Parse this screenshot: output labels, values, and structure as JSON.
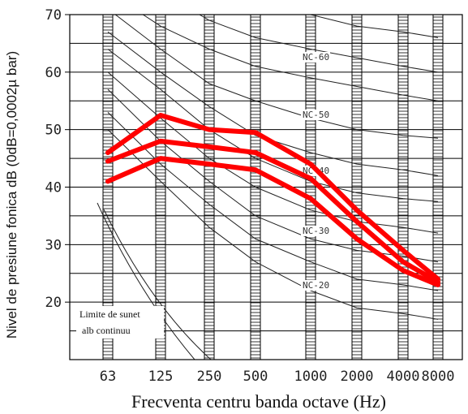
{
  "chart_data": {
    "type": "line",
    "title": "",
    "xlabel": "Frecventa centru banda octave (Hz)",
    "ylabel": "Nivel de presiune fonica dB (0dB=0,0002µ bar)",
    "x_categories": [
      "63",
      "125",
      "250",
      "500",
      "1000",
      "2000",
      "4000",
      "8000"
    ],
    "ylim": [
      10,
      70
    ],
    "yticks": [
      20,
      30,
      40,
      50,
      60,
      70
    ],
    "grid": true,
    "nc_labels": [
      "NC-60",
      "NC-50",
      "NC-40",
      "NC-30",
      "NC-20"
    ],
    "annotation": [
      "Limite de sunet",
      "alb  continuu"
    ],
    "series": [
      {
        "color": "#ff0000",
        "values": [
          46,
          52.5,
          50,
          49.5,
          44,
          36,
          29,
          24
        ]
      },
      {
        "color": "#ff0000",
        "values": [
          44.5,
          48,
          47,
          46,
          41.5,
          34,
          27,
          23.5
        ]
      },
      {
        "color": "#ff0000",
        "values": [
          41,
          45,
          44,
          43,
          38,
          31,
          25.5,
          23
        ]
      }
    ]
  }
}
